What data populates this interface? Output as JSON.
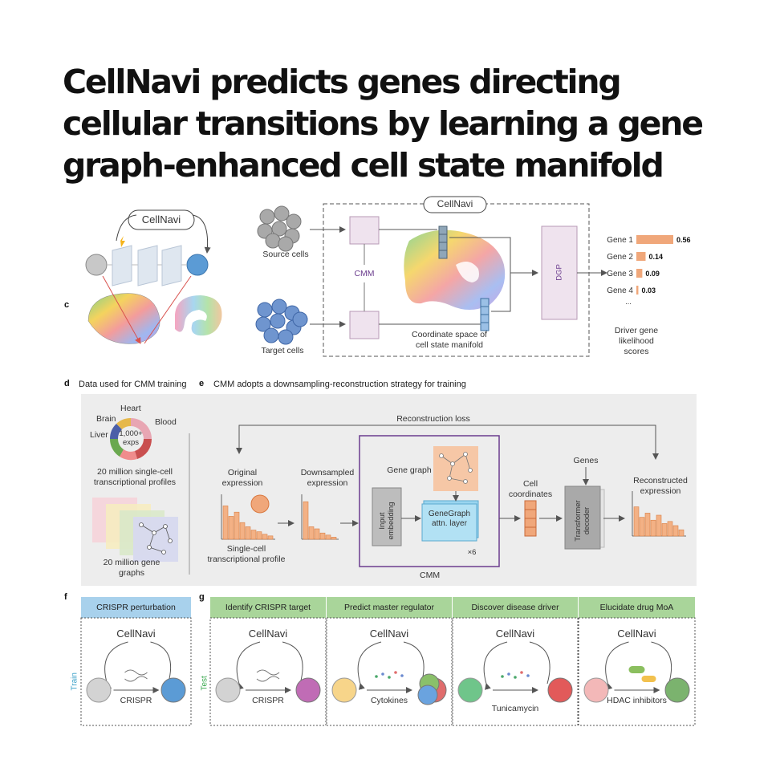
{
  "title": "CellNavi predicts genes directing cellular transitions by learning a gene graph-enhanced cell state manifold",
  "logo_text": "CellNavi",
  "panel_letters": {
    "c": "c",
    "d": "d",
    "e": "e",
    "f": "f",
    "g": "g"
  },
  "top": {
    "source_cells": "Source cells",
    "target_cells": "Target cells",
    "cmm": "CMM",
    "dgp": "DGP",
    "coordinate_space": "Coordinate space of cell state manifold",
    "driver_scores_caption": "Driver gene likelihood scores",
    "ellipsis": "..."
  },
  "chart_data": {
    "type": "bar",
    "categories": [
      "Gene 1",
      "Gene 2",
      "Gene 3",
      "Gene 4"
    ],
    "values": [
      0.56,
      0.14,
      0.09,
      0.03
    ],
    "value_labels": [
      "0.56",
      "0.14",
      "0.09",
      "0.03"
    ],
    "orientation": "horizontal",
    "bar_color": "#f0a77a"
  },
  "panel_d": {
    "heading": "Data used for CMM training",
    "organs": [
      "Heart",
      "Brain",
      "Blood",
      "Liver"
    ],
    "donut_center": "1,000+ exps",
    "profiles": "20 million single-cell transcriptional profiles",
    "graphs": "20 million gene graphs"
  },
  "panel_e": {
    "heading": "CMM adopts a downsampling-reconstruction strategy for training",
    "reconstruction_loss": "Reconstruction loss",
    "original": "Original expression",
    "downsampled": "Downsampled expression",
    "single_cell": "Single-cell transcriptional profile",
    "gene_graph": "Gene graph",
    "input_embedding": "Input embedding",
    "genegraph_layer": "GeneGraph attn. layer",
    "times6": "×6",
    "cell_coords": "Cell coordinates",
    "genes": "Genes",
    "transformer": "Transformer decoder",
    "reconstructed": "Reconstructed expression",
    "cmm": "CMM",
    "original_bars": [
      0.8,
      0.55,
      0.65,
      0.4,
      0.3,
      0.22,
      0.18,
      0.12,
      0.08
    ],
    "downsampled_bars": [
      0.9,
      0.3,
      0.25,
      0.15,
      0.1,
      0.05
    ],
    "reconstructed_bars": [
      0.7,
      0.45,
      0.55,
      0.38,
      0.5,
      0.3,
      0.35,
      0.25,
      0.15
    ]
  },
  "panel_f": {
    "header": "CRISPR perturbation",
    "side": "Train",
    "arrow_label": "CRISPR"
  },
  "panel_g": {
    "side": "Test",
    "boxes": [
      {
        "header": "Identify CRISPR target",
        "arrow_label": "CRISPR"
      },
      {
        "header": "Predict master regulator",
        "arrow_label": "Cytokines"
      },
      {
        "header": "Discover disease driver",
        "arrow_label": "Tunicamycin"
      },
      {
        "header": "Elucidate drug MoA",
        "arrow_label": "HDAC inhibitors"
      }
    ]
  },
  "colors": {
    "blue_header": "#a8d1ec",
    "green_header": "#a9d59a",
    "cmm_purple": "#6b3d8e",
    "orange": "#f0a77a",
    "box_lilac": "#efe3ee"
  }
}
